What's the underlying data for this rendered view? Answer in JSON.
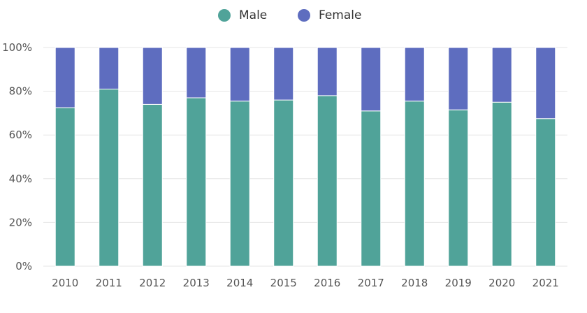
{
  "legend": {
    "items": [
      {
        "label": "Male",
        "color": "#50a399"
      },
      {
        "label": "Female",
        "color": "#5e6dbf"
      }
    ]
  },
  "chart_data": {
    "type": "bar",
    "stacked": true,
    "categories": [
      "2010",
      "2011",
      "2012",
      "2013",
      "2014",
      "2015",
      "2016",
      "2017",
      "2018",
      "2019",
      "2020",
      "2021"
    ],
    "series": [
      {
        "name": "Male",
        "color": "#50a399",
        "values": [
          72.5,
          81.0,
          74.0,
          77.0,
          75.5,
          76.0,
          78.0,
          71.0,
          75.5,
          71.5,
          75.0,
          67.5
        ]
      },
      {
        "name": "Female",
        "color": "#5e6dbf",
        "values": [
          27.5,
          19.0,
          26.0,
          23.0,
          24.5,
          24.0,
          22.0,
          29.0,
          24.5,
          28.5,
          25.0,
          32.5
        ]
      }
    ],
    "y_ticks": [
      "0%",
      "20%",
      "40%",
      "60%",
      "80%",
      "100%"
    ],
    "ylim": [
      0,
      100
    ],
    "grid": true,
    "legend_position": "top-center",
    "title": "",
    "xlabel": "",
    "ylabel": ""
  }
}
